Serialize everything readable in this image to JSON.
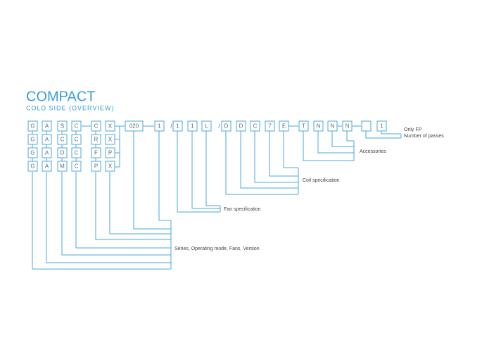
{
  "header": {
    "title": "COMPACT",
    "subtitle": "COLD SIDE (OVERVIEW)"
  },
  "code": [
    "G",
    "A",
    "S",
    "C",
    "C",
    "X",
    "020",
    "1",
    "/",
    "1",
    "1",
    "L",
    "/",
    "D",
    "D",
    "C",
    "7",
    "E",
    "T",
    "N",
    "N",
    "N",
    "1"
  ],
  "options": [
    [
      "G",
      "A",
      "C",
      "C",
      "R",
      "X"
    ],
    [
      "G",
      "A",
      "D",
      "C",
      "F",
      "P"
    ],
    [
      "G",
      "A",
      "M",
      "C",
      "P",
      "X"
    ]
  ],
  "labels": {
    "only_fp": "Only FP",
    "passes": "Number of passes",
    "accessories": "Accessories",
    "coil": "Coil specification",
    "fan": "Fan specification",
    "series": "Series, Operating mode, Fans, Version"
  }
}
